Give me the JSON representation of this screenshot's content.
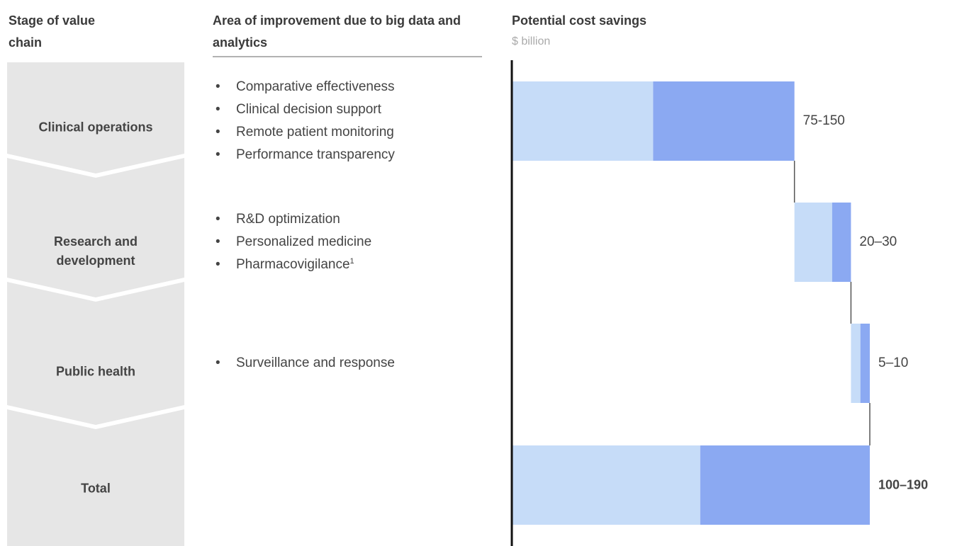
{
  "chart_data": {
    "type": "waterfall",
    "stage_header": "Stage of value chain",
    "area_header": "Area of improvement due to big data and analytics",
    "title": "Potential cost savings",
    "subtitle": "$ billion",
    "categories": [
      "Clinical operations",
      "Research and development",
      "Public health",
      "Total"
    ],
    "areas": [
      [
        "Comparative effectiveness",
        "Clinical decision support",
        "Remote patient monitoring",
        "Performance transparency"
      ],
      [
        "R&D optimization",
        "Personalized medicine",
        {
          "text": "Pharmacovigilance",
          "footnote": "1"
        }
      ],
      [
        "Surveillance and response"
      ],
      []
    ],
    "low": [
      75,
      20,
      5,
      100
    ],
    "high": [
      150,
      30,
      10,
      190
    ],
    "value_labels": [
      "75-150",
      "20–30",
      "5–10",
      "100–190"
    ],
    "low_color": "#c6dcf8",
    "high_color": "#8ba9f2"
  }
}
